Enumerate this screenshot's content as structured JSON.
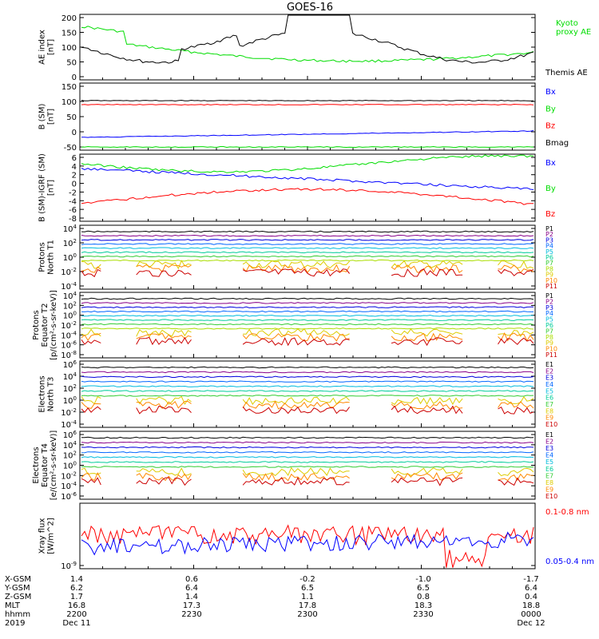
{
  "chart_data": {
    "type": "line",
    "title": "GOES-16",
    "x_axis": {
      "rows": [
        {
          "label": "X-GSM",
          "values": [
            "1.4",
            "0.6",
            "-0.2",
            "-1.0",
            "-1.7"
          ]
        },
        {
          "label": "Y-GSM",
          "values": [
            "6.2",
            "6.4",
            "6.5",
            "6.5",
            "6.4"
          ]
        },
        {
          "label": "Z-GSM",
          "values": [
            "1.7",
            "1.4",
            "1.1",
            "0.8",
            "0.4"
          ]
        },
        {
          "label": "MLT",
          "values": [
            "16.8",
            "17.3",
            "17.8",
            "18.3",
            "18.8"
          ]
        },
        {
          "label": "hhmm",
          "values": [
            "2200",
            "2230",
            "2300",
            "2330",
            "0000"
          ]
        },
        {
          "label": "2019",
          "values": [
            "Dec 11",
            "",
            "",
            "",
            "Dec 12"
          ]
        }
      ]
    },
    "panels": [
      {
        "ylabel": [
          "AE index",
          "[nT]"
        ],
        "scale": "linear",
        "yticks": [
          "200",
          "150",
          "100",
          "50",
          "0"
        ],
        "legend": [
          {
            "name": "Kyoto\nproxy AE",
            "color": "#00dd00"
          },
          {
            "name": "Themis AE",
            "color": "#000000"
          }
        ]
      },
      {
        "ylabel": [
          "B (SM)",
          "[nT]"
        ],
        "scale": "linear",
        "yticks": [
          "150",
          "100",
          "50",
          "0",
          "-50"
        ],
        "legend": [
          {
            "name": "Bx",
            "color": "#0000ff"
          },
          {
            "name": "By",
            "color": "#00dd00"
          },
          {
            "name": "Bz",
            "color": "#ff0000"
          },
          {
            "name": "Bmag",
            "color": "#000000"
          }
        ]
      },
      {
        "ylabel": [
          "B (SM)-IGRF (SM)",
          "[nT]"
        ],
        "scale": "linear",
        "yticks": [
          "6",
          "4",
          "2",
          "0",
          "-2",
          "-4",
          "-6",
          "-8"
        ],
        "legend": [
          {
            "name": "Bx",
            "color": "#0000ff"
          },
          {
            "name": "By",
            "color": "#00dd00"
          },
          {
            "name": "Bz",
            "color": "#ff0000"
          }
        ]
      },
      {
        "ylabel": [
          "Protons",
          "North T1"
        ],
        "scale": "log",
        "yticks": [
          "10^4",
          "10^2",
          "10^0",
          "10^-2",
          "10^-4"
        ],
        "legend": [
          {
            "name": "P1",
            "color": "#000000"
          },
          {
            "name": "P2",
            "color": "#880088"
          },
          {
            "name": "P3",
            "color": "#0000dd"
          },
          {
            "name": "P4",
            "color": "#0066ff"
          },
          {
            "name": "P5",
            "color": "#00bbdd"
          },
          {
            "name": "P6",
            "color": "#00cc99"
          },
          {
            "name": "P7",
            "color": "#33cc33"
          },
          {
            "name": "P8",
            "color": "#aadd00"
          },
          {
            "name": "P9",
            "color": "#ddcc00"
          },
          {
            "name": "P10",
            "color": "#ff8800"
          },
          {
            "name": "P11",
            "color": "#cc0000"
          }
        ]
      },
      {
        "ylabel": [
          "Protons",
          "Equator T2",
          "[p/(cm²-s-sr-keV)]"
        ],
        "scale": "log",
        "yticks": [
          "10^4",
          "10^2",
          "10^0",
          "10^-2",
          "10^-4",
          "10^-6",
          "10^-8"
        ],
        "legend": [
          {
            "name": "P1",
            "color": "#000000"
          },
          {
            "name": "P2",
            "color": "#880088"
          },
          {
            "name": "P3",
            "color": "#0000dd"
          },
          {
            "name": "P4",
            "color": "#0066ff"
          },
          {
            "name": "P5",
            "color": "#00bbdd"
          },
          {
            "name": "P6",
            "color": "#00cc99"
          },
          {
            "name": "P7",
            "color": "#33cc33"
          },
          {
            "name": "P8",
            "color": "#aadd00"
          },
          {
            "name": "P9",
            "color": "#ddcc00"
          },
          {
            "name": "P10",
            "color": "#ff8800"
          },
          {
            "name": "P11",
            "color": "#cc0000"
          }
        ]
      },
      {
        "ylabel": [
          "Electrons",
          "North T3"
        ],
        "scale": "log",
        "yticks": [
          "10^6",
          "10^4",
          "10^2",
          "10^0",
          "10^-2",
          "10^-4"
        ],
        "legend": [
          {
            "name": "E1",
            "color": "#000000"
          },
          {
            "name": "E2",
            "color": "#880088"
          },
          {
            "name": "E3",
            "color": "#0000dd"
          },
          {
            "name": "E4",
            "color": "#0066ff"
          },
          {
            "name": "E5",
            "color": "#00bbdd"
          },
          {
            "name": "E6",
            "color": "#00cc99"
          },
          {
            "name": "E7",
            "color": "#33cc33"
          },
          {
            "name": "E8",
            "color": "#ddcc00"
          },
          {
            "name": "E9",
            "color": "#ff8800"
          },
          {
            "name": "E10",
            "color": "#cc0000"
          }
        ]
      },
      {
        "ylabel": [
          "Electrons",
          "Equator T4",
          "[e/(cm²-s-sr-keV)]"
        ],
        "scale": "log",
        "yticks": [
          "10^6",
          "10^4",
          "10^2",
          "10^0",
          "10^-2",
          "10^-4",
          "10^-6"
        ],
        "legend": [
          {
            "name": "E1",
            "color": "#000000"
          },
          {
            "name": "E2",
            "color": "#880088"
          },
          {
            "name": "E3",
            "color": "#0000dd"
          },
          {
            "name": "E4",
            "color": "#0066ff"
          },
          {
            "name": "E5",
            "color": "#00bbdd"
          },
          {
            "name": "E6",
            "color": "#00cc99"
          },
          {
            "name": "E7",
            "color": "#33cc33"
          },
          {
            "name": "E8",
            "color": "#ddcc00"
          },
          {
            "name": "E9",
            "color": "#ff8800"
          },
          {
            "name": "E10",
            "color": "#cc0000"
          }
        ]
      },
      {
        "ylabel": [
          "Xray flux",
          "[W/m^2]"
        ],
        "scale": "log",
        "yticks": [
          "10^-9"
        ],
        "legend": [
          {
            "name": "0.1-0.8 nm",
            "color": "#ff0000"
          },
          {
            "name": "0.05-0.4 nm",
            "color": "#0000ff"
          }
        ]
      }
    ]
  }
}
